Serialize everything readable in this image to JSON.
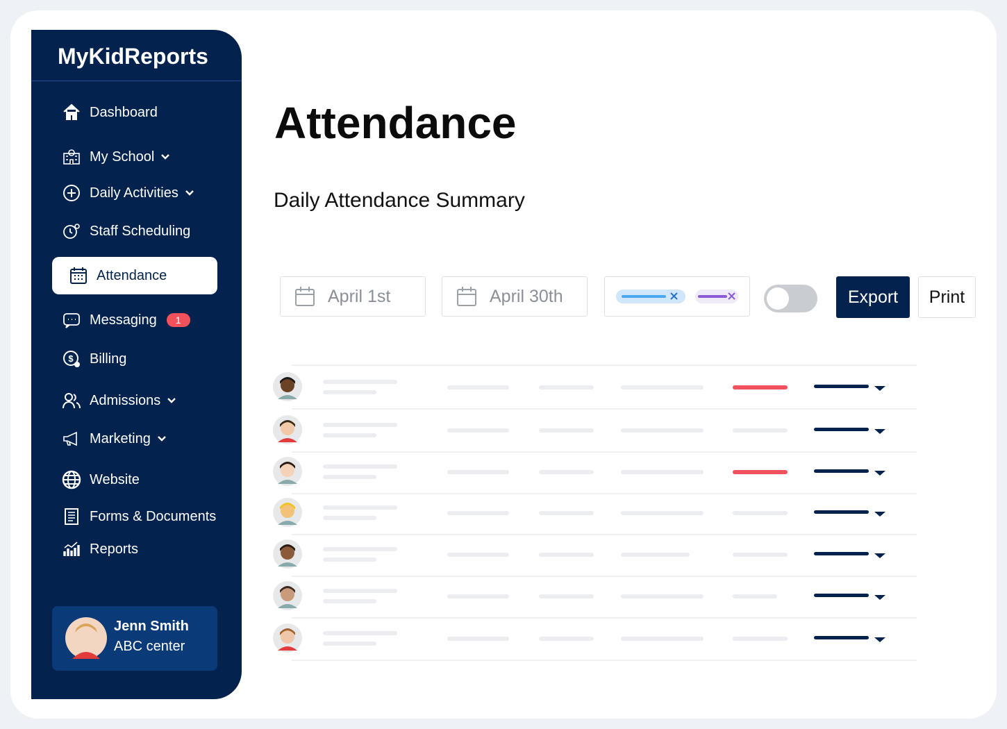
{
  "sidebar": {
    "brand": "MyKidReports",
    "nav": [
      {
        "label": "Dashboard",
        "icon": "home"
      },
      {
        "label": "My School",
        "icon": "school",
        "dropdown": true
      },
      {
        "label": "Daily Activities",
        "icon": "plus",
        "dropdown": true
      },
      {
        "label": "Staff Scheduling",
        "icon": "clock"
      },
      {
        "label": "Attendance",
        "icon": "calendar",
        "active": true
      },
      {
        "label": "Messaging",
        "icon": "chat",
        "badge": 1
      },
      {
        "label": "Billing",
        "icon": "dollar"
      },
      {
        "label": "Admissions",
        "icon": "people",
        "dropdown": true
      },
      {
        "label": "Marketing",
        "icon": "megaphone",
        "dropdown": true
      },
      {
        "label": "Website",
        "icon": "globe"
      },
      {
        "label": "Forms & Documents",
        "icon": "doc"
      },
      {
        "label": "Reports",
        "icon": "chart"
      }
    ],
    "user": {
      "name": "Jenn Smith",
      "org": "ABC center"
    }
  },
  "main": {
    "title": "Attendance",
    "subtitle": "Daily Attendance Summary",
    "start_date": "April 1st",
    "end_date": "April 30th",
    "buttons": [
      "Export",
      "Print"
    ]
  }
}
